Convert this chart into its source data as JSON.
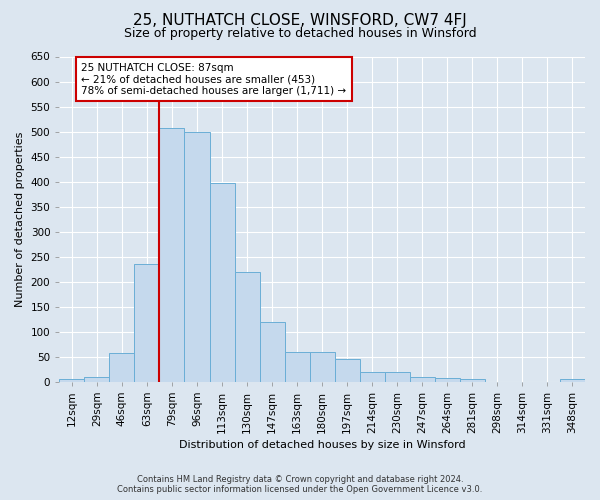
{
  "title": "25, NUTHATCH CLOSE, WINSFORD, CW7 4FJ",
  "subtitle": "Size of property relative to detached houses in Winsford",
  "xlabel": "Distribution of detached houses by size in Winsford",
  "ylabel": "Number of detached properties",
  "footer_line1": "Contains HM Land Registry data © Crown copyright and database right 2024.",
  "footer_line2": "Contains public sector information licensed under the Open Government Licence v3.0.",
  "bar_labels": [
    "12sqm",
    "29sqm",
    "46sqm",
    "63sqm",
    "79sqm",
    "96sqm",
    "113sqm",
    "130sqm",
    "147sqm",
    "163sqm",
    "180sqm",
    "197sqm",
    "214sqm",
    "230sqm",
    "247sqm",
    "264sqm",
    "281sqm",
    "298sqm",
    "314sqm",
    "331sqm",
    "348sqm"
  ],
  "bar_values": [
    5,
    10,
    57,
    236,
    508,
    500,
    398,
    220,
    120,
    60,
    60,
    45,
    20,
    20,
    10,
    8,
    6,
    0,
    0,
    0,
    5
  ],
  "bar_color": "#c5d9ed",
  "bar_edge_color": "#6aaed6",
  "vline_x_index": 4,
  "vline_color": "#cc0000",
  "annotation_text": "25 NUTHATCH CLOSE: 87sqm\n← 21% of detached houses are smaller (453)\n78% of semi-detached houses are larger (1,711) →",
  "annotation_box_facecolor": "#ffffff",
  "annotation_box_edgecolor": "#cc0000",
  "ylim": [
    0,
    650
  ],
  "yticks": [
    0,
    50,
    100,
    150,
    200,
    250,
    300,
    350,
    400,
    450,
    500,
    550,
    600,
    650
  ],
  "background_color": "#dce6f0",
  "plot_background_color": "#dce6f0",
  "title_fontsize": 11,
  "subtitle_fontsize": 9,
  "axis_fontsize": 8,
  "tick_fontsize": 7.5,
  "grid_color": "#ffffff",
  "bar_width": 1.0
}
